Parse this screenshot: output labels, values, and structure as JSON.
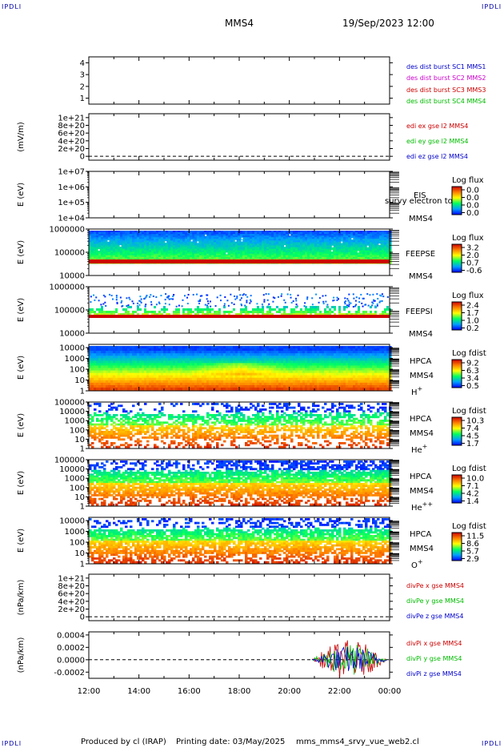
{
  "corner_text": "IPDLI",
  "header": {
    "spacecraft": "MMS4",
    "datetime": "19/Sep/2023 12:00"
  },
  "footer": {
    "produced": "Produced by cl (IRAP)",
    "printing": "Printing date: 03/May/2025",
    "script": "mms_mms4_srvy_vue_web2.cl"
  },
  "time_axis": {
    "ticks": [
      "12:00",
      "14:00",
      "16:00",
      "18:00",
      "20:00",
      "22:00",
      "00:00"
    ]
  },
  "chart_data": [
    {
      "type": "line",
      "ylim": [
        0.5,
        4.5
      ],
      "yticks": [
        "4",
        "3",
        "2",
        "1"
      ],
      "ytick_values": [
        4,
        3,
        2,
        1
      ],
      "ylabel": "",
      "series": [
        {
          "name": "des dist burst SC1 MMS1",
          "color": "#0000cc",
          "values": []
        },
        {
          "name": "des dist burst SC2 MMS2",
          "color": "#cc00cc",
          "values": []
        },
        {
          "name": "des dist burst SC3 MMS3",
          "color": "#cc0000",
          "values": []
        },
        {
          "name": "des dist burst SC4 MMS4",
          "color": "#00bb00",
          "values": []
        }
      ]
    },
    {
      "type": "line",
      "ylim": [
        -1e+20,
        1.1e+21
      ],
      "yticks": [
        "1e+21",
        "8e+20",
        "6e+20",
        "4e+20",
        "2e+20",
        "0"
      ],
      "ytick_values": [
        1e+21,
        8e+20,
        6e+20,
        4e+20,
        2e+20,
        0
      ],
      "ylabel": "(mV/m)",
      "zero_line": true,
      "series": [
        {
          "name": "edi ex gse l2 MMS4",
          "color": "#cc0000",
          "values": []
        },
        {
          "name": "edi ey gse l2 MMS4",
          "color": "#00bb00",
          "values": []
        },
        {
          "name": "edi ez gse l2 MMS4",
          "color": "#0000cc",
          "values": []
        }
      ]
    },
    {
      "type": "heatmap",
      "ylabel": "E (eV)",
      "ylog": true,
      "ylim": [
        10000,
        10000000
      ],
      "yticks": [
        "1e+07",
        "1e+06",
        "1e+05",
        "1e+04"
      ],
      "ytick_values": [
        10000000,
        1000000,
        100000,
        10000
      ],
      "instrument": [
        "EIS",
        "MMS4"
      ],
      "overlay_text": "survy electron to",
      "colorbar": {
        "title": "Log flux",
        "ticks": [
          "0.0",
          "0.0",
          "0.0",
          "0.0"
        ]
      },
      "fill": "none"
    },
    {
      "type": "heatmap",
      "ylabel": "E (eV)",
      "ylog": true,
      "ylim": [
        10000,
        1000000
      ],
      "yticks": [
        "1000000",
        "100000",
        "10000"
      ],
      "ytick_values": [
        1000000,
        100000,
        10000
      ],
      "instrument": [
        "FEEPSE",
        "MMS4"
      ],
      "colorbar": {
        "title": "Log flux",
        "ticks": [
          "3.2",
          "2.0",
          "0.7",
          "-0.6"
        ]
      },
      "fill": "feepse"
    },
    {
      "type": "heatmap",
      "ylabel": "E (eV)",
      "ylog": true,
      "ylim": [
        10000,
        1000000
      ],
      "yticks": [
        "1000000",
        "100000",
        "10000"
      ],
      "ytick_values": [
        1000000,
        100000,
        10000
      ],
      "instrument": [
        "FEEPSI",
        "MMS4"
      ],
      "colorbar": {
        "title": "Log flux",
        "ticks": [
          "2.4",
          "1.7",
          "1.0",
          "0.2"
        ]
      },
      "fill": "feepsi"
    },
    {
      "type": "heatmap",
      "ylabel": "E (eV)",
      "ylog": true,
      "ylim": [
        1,
        20000
      ],
      "yticks": [
        "10000",
        "1000",
        "100",
        "10",
        "1"
      ],
      "ytick_values": [
        10000,
        1000,
        100,
        10,
        1
      ],
      "instrument": [
        "HPCA",
        "MMS4"
      ],
      "species": "H",
      "species_charge": "+",
      "colorbar": {
        "title": "Log fdist",
        "ticks": [
          "9.2",
          "6.3",
          "3.4",
          "0.5"
        ]
      },
      "fill": "hplus"
    },
    {
      "type": "heatmap",
      "ylabel": "E (eV)",
      "ylog": true,
      "ylim": [
        1,
        100000
      ],
      "yticks": [
        "100000",
        "10000",
        "1000",
        "100",
        "10",
        "1"
      ],
      "ytick_values": [
        100000,
        10000,
        1000,
        100,
        10,
        1
      ],
      "instrument": [
        "HPCA",
        "MMS4"
      ],
      "species": "He",
      "species_charge": "+",
      "colorbar": {
        "title": "Log fdist",
        "ticks": [
          "10.3",
          "7.4",
          "4.5",
          "1.7"
        ]
      },
      "fill": "heplus"
    },
    {
      "type": "heatmap",
      "ylabel": "E (eV)",
      "ylog": true,
      "ylim": [
        1,
        100000
      ],
      "yticks": [
        "100000",
        "10000",
        "1000",
        "100",
        "10",
        "1"
      ],
      "ytick_values": [
        100000,
        10000,
        1000,
        100,
        10,
        1
      ],
      "instrument": [
        "HPCA",
        "MMS4"
      ],
      "species": "He",
      "species_charge": "++",
      "colorbar": {
        "title": "Log fdist",
        "ticks": [
          "10.0",
          "7.1",
          "4.2",
          "1.4"
        ]
      },
      "fill": "heplusplus"
    },
    {
      "type": "heatmap",
      "ylabel": "E (eV)",
      "ylog": true,
      "ylim": [
        1,
        20000
      ],
      "yticks": [
        "10000",
        "1000",
        "100",
        "10",
        "1"
      ],
      "ytick_values": [
        10000,
        1000,
        100,
        10,
        1
      ],
      "instrument": [
        "HPCA",
        "MMS4"
      ],
      "species": "O",
      "species_charge": "+",
      "colorbar": {
        "title": "Log fdist",
        "ticks": [
          "11.5",
          "8.6",
          "5.7",
          "2.9"
        ]
      },
      "fill": "oplus"
    },
    {
      "type": "line",
      "ylim": [
        -1e+20,
        1.1e+21
      ],
      "yticks": [
        "1e+21",
        "8e+20",
        "6e+20",
        "4e+20",
        "2e+20",
        "0"
      ],
      "ytick_values": [
        1e+21,
        8e+20,
        6e+20,
        4e+20,
        2e+20,
        0
      ],
      "ylabel": "(nPa/km)",
      "zero_line": true,
      "series": [
        {
          "name": "divPe x gse MMS4",
          "color": "#cc0000",
          "values": []
        },
        {
          "name": "divPe y gse MMS4",
          "color": "#00bb00",
          "values": []
        },
        {
          "name": "divPe z gse MMS4",
          "color": "#0000cc",
          "values": []
        }
      ]
    },
    {
      "type": "line",
      "ylim": [
        -0.0003,
        0.00045
      ],
      "yticks": [
        "0.0004",
        "0.0002",
        "0.0000",
        "-0.0002"
      ],
      "ytick_values": [
        0.0004,
        0.0002,
        0.0,
        -0.0002
      ],
      "ylabel": "(nPa/km)",
      "zero_line": true,
      "series": [
        {
          "name": "divPi x gse MMS4",
          "color": "#cc0000",
          "burst_start": 20.9,
          "burst_end": 23.9,
          "amplitude": 0.00032
        },
        {
          "name": "divPi y gse MMS4",
          "color": "#00bb00",
          "burst_start": 20.9,
          "burst_end": 23.9,
          "amplitude": 0.00026
        },
        {
          "name": "divPi z gse MMS4",
          "color": "#0000cc",
          "burst_start": 20.9,
          "burst_end": 23.9,
          "amplitude": 0.00022
        }
      ]
    }
  ]
}
